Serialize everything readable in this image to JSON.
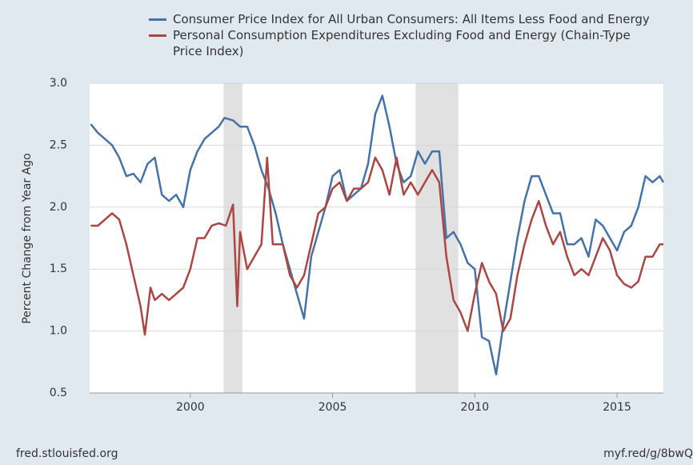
{
  "chart_data": {
    "type": "line",
    "y_label": "Percent Change from Year Ago",
    "source": "fred.stlouisfed.org",
    "short_link": "myf.red/g/8bwQ",
    "xlim": [
      1996.46,
      2016.63
    ],
    "xticks": [
      2000,
      2005,
      2010,
      2015
    ],
    "ylim": [
      0.5,
      3.0
    ],
    "yticks": [
      0.5,
      {
        "value": 1.0,
        "label": "1.0"
      },
      1.5,
      {
        "value": 2.0,
        "label": "2.0"
      },
      2.5,
      {
        "value": 3.0,
        "label": "3.0"
      }
    ],
    "grid": true,
    "recessions": [
      [
        2001.17,
        2001.83
      ],
      [
        2007.92,
        2009.42
      ]
    ],
    "recession_color": "#e1e1e1",
    "series": [
      {
        "name": "Consumer Price Index for All Urban Consumers: All Items Less Food and Energy",
        "color": "#4572a7",
        "x": [
          1996.5,
          1996.75,
          1997,
          1997.25,
          1997.5,
          1997.75,
          1998,
          1998.25,
          1998.5,
          1998.75,
          1999,
          1999.25,
          1999.5,
          1999.75,
          2000,
          2000.25,
          2000.5,
          2000.75,
          2001,
          2001.2,
          2001.5,
          2001.75,
          2002,
          2002.25,
          2002.5,
          2002.75,
          2003,
          2003.25,
          2003.5,
          2003.75,
          2004,
          2004.25,
          2004.5,
          2004.75,
          2005,
          2005.25,
          2005.5,
          2005.75,
          2006,
          2006.25,
          2006.5,
          2006.75,
          2007,
          2007.25,
          2007.5,
          2007.75,
          2008,
          2008.25,
          2008.5,
          2008.75,
          2009,
          2009.25,
          2009.5,
          2009.75,
          2010,
          2010.25,
          2010.5,
          2010.75,
          2011,
          2011.25,
          2011.5,
          2011.75,
          2012,
          2012.25,
          2012.5,
          2012.75,
          2013,
          2013.25,
          2013.5,
          2013.75,
          2014,
          2014.25,
          2014.5,
          2014.75,
          2015,
          2015.25,
          2015.5,
          2015.75,
          2016,
          2016.25,
          2016.5,
          2016.63
        ],
        "values": [
          2.67,
          2.6,
          2.55,
          2.5,
          2.4,
          2.25,
          2.27,
          2.2,
          2.35,
          2.4,
          2.1,
          2.05,
          2.1,
          2.0,
          2.3,
          2.45,
          2.55,
          2.6,
          2.65,
          2.72,
          2.7,
          2.65,
          2.65,
          2.5,
          2.3,
          2.15,
          1.95,
          1.7,
          1.5,
          1.3,
          1.1,
          1.6,
          1.8,
          2.0,
          2.25,
          2.3,
          2.05,
          2.1,
          2.15,
          2.35,
          2.75,
          2.9,
          2.65,
          2.35,
          2.2,
          2.25,
          2.45,
          2.35,
          2.45,
          2.45,
          1.75,
          1.8,
          1.7,
          1.55,
          1.5,
          0.95,
          0.92,
          0.65,
          1.05,
          1.4,
          1.75,
          2.05,
          2.25,
          2.25,
          2.1,
          1.95,
          1.95,
          1.7,
          1.7,
          1.75,
          1.6,
          1.9,
          1.85,
          1.75,
          1.65,
          1.8,
          1.85,
          2.0,
          2.25,
          2.2,
          2.25,
          2.2
        ]
      },
      {
        "name": "Personal Consumption Expenditures Excluding Food and Energy (Chain-Type Price Index)",
        "color": "#aa4643",
        "x": [
          1996.5,
          1996.75,
          1997,
          1997.25,
          1997.5,
          1997.75,
          1998,
          1998.25,
          1998.4,
          1998.6,
          1998.75,
          1999,
          1999.25,
          1999.5,
          1999.75,
          2000,
          2000.25,
          2000.5,
          2000.75,
          2001,
          2001.25,
          2001.5,
          2001.65,
          2001.75,
          2002,
          2002.25,
          2002.5,
          2002.7,
          2002.9,
          2003.25,
          2003.5,
          2003.75,
          2004,
          2004.25,
          2004.5,
          2004.75,
          2005,
          2005.25,
          2005.5,
          2005.75,
          2006,
          2006.25,
          2006.5,
          2006.75,
          2007,
          2007.25,
          2007.5,
          2007.75,
          2008,
          2008.25,
          2008.5,
          2008.75,
          2009,
          2009.25,
          2009.5,
          2009.75,
          2010,
          2010.25,
          2010.5,
          2010.75,
          2011,
          2011.25,
          2011.5,
          2011.75,
          2012,
          2012.25,
          2012.5,
          2012.75,
          2013,
          2013.25,
          2013.5,
          2013.75,
          2014,
          2014.25,
          2014.5,
          2014.75,
          2015,
          2015.25,
          2015.5,
          2015.75,
          2016,
          2016.25,
          2016.5,
          2016.63
        ],
        "values": [
          1.85,
          1.85,
          1.9,
          1.95,
          1.9,
          1.7,
          1.45,
          1.2,
          0.97,
          1.35,
          1.25,
          1.3,
          1.25,
          1.3,
          1.35,
          1.5,
          1.75,
          1.75,
          1.85,
          1.87,
          1.85,
          2.02,
          1.2,
          1.8,
          1.5,
          1.6,
          1.7,
          2.4,
          1.7,
          1.7,
          1.45,
          1.35,
          1.45,
          1.7,
          1.95,
          2.0,
          2.15,
          2.2,
          2.05,
          2.15,
          2.15,
          2.2,
          2.4,
          2.3,
          2.1,
          2.4,
          2.1,
          2.2,
          2.1,
          2.2,
          2.3,
          2.2,
          1.6,
          1.25,
          1.15,
          1.0,
          1.3,
          1.55,
          1.4,
          1.3,
          1.0,
          1.1,
          1.45,
          1.7,
          1.9,
          2.05,
          1.85,
          1.7,
          1.8,
          1.6,
          1.45,
          1.5,
          1.45,
          1.6,
          1.75,
          1.65,
          1.45,
          1.38,
          1.35,
          1.4,
          1.6,
          1.6,
          1.7,
          1.7
        ]
      }
    ]
  }
}
